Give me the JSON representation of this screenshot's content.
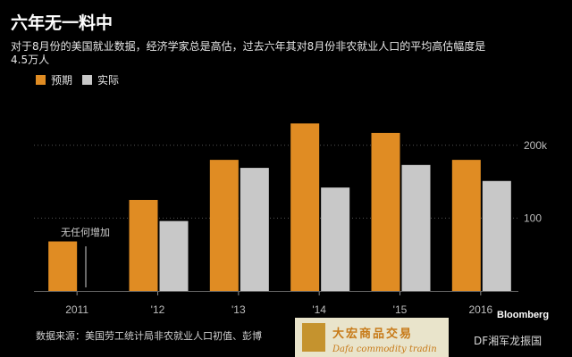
{
  "chart_data": {
    "type": "bar",
    "title": "六年无一料中",
    "subtitle": [
      "对于8月份的美国就业数据，经济学家总是高估，过去六年其对8月份非农就业人口的平均高估幅度是",
      "4.5万人"
    ],
    "legend": [
      {
        "label": "预期",
        "color": "#e08c23"
      },
      {
        "label": "实际",
        "color": "#c8c8c8"
      }
    ],
    "categories": [
      "2011",
      "'12",
      "'13",
      "'14",
      "'15",
      "2016"
    ],
    "series": [
      {
        "name": "预期",
        "values": [
          68,
          125,
          180,
          230,
          217,
          180
        ]
      },
      {
        "name": "实际",
        "values": [
          null,
          96,
          169,
          142,
          173,
          151
        ]
      }
    ],
    "y_ticks": [
      "200k",
      "100"
    ],
    "y_tick_values": [
      200,
      100
    ],
    "ylim": [
      0,
      250
    ],
    "annotation": "无任何增加",
    "source": "数据来源：美国劳工统计局非农就业人口初值、彭博",
    "brand": "Bloomberg",
    "legend_position": "top-left",
    "grid": "dotted horizontal"
  },
  "watermark": {
    "cn": "大宏商品交易",
    "en": "Dafa commodity tradin",
    "weibo": "DF湘军龙振国"
  }
}
